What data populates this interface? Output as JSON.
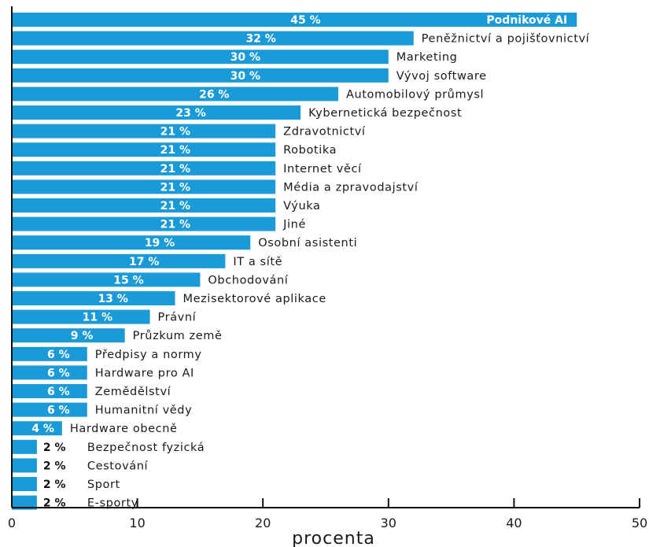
{
  "chart_data": {
    "type": "bar",
    "orientation": "horizontal",
    "xlabel": "procenta",
    "xlim": [
      0,
      50
    ],
    "xticks": [
      0,
      10,
      20,
      30,
      40,
      50
    ],
    "grid": false,
    "bar_color": "#1a9ad6",
    "categories": [
      "Podnikové AI",
      "Peněžnictví a pojišťovnictví",
      "Marketing",
      "Vývoj software",
      "Automobilový průmysl",
      "Kybernetická bezpečnost",
      "Zdravotnictví",
      "Robotika",
      "Internet věcí",
      "Média a zpravodajství",
      "Výuka",
      "Jiné",
      "Osobní asistenti",
      "IT a sítě",
      "Obchodování",
      "Mezisektorové aplikace",
      "Právní",
      "Průzkum země",
      "Předpisy a normy",
      "Hardware pro AI",
      "Zemědělství",
      "Humanitní vědy",
      "Hardware obecně",
      "Bezpečnost fyzická",
      "Cestování",
      "Sport",
      "E-sporty"
    ],
    "values": [
      45,
      32,
      30,
      30,
      26,
      23,
      21,
      21,
      21,
      21,
      21,
      21,
      19,
      17,
      15,
      13,
      11,
      9,
      6,
      6,
      6,
      6,
      4,
      2,
      2,
      2,
      2
    ],
    "value_labels": [
      "45 %",
      "32 %",
      "30 %",
      "30 %",
      "26 %",
      "23 %",
      "21 %",
      "21 %",
      "21 %",
      "21 %",
      "21 %",
      "21 %",
      "19 %",
      "17 %",
      "15 %",
      "13 %",
      "11 %",
      "9 %",
      "6 %",
      "6 %",
      "6 %",
      "6 %",
      "4 %",
      "2 %",
      "2 %",
      "2 %",
      "2 %"
    ]
  }
}
